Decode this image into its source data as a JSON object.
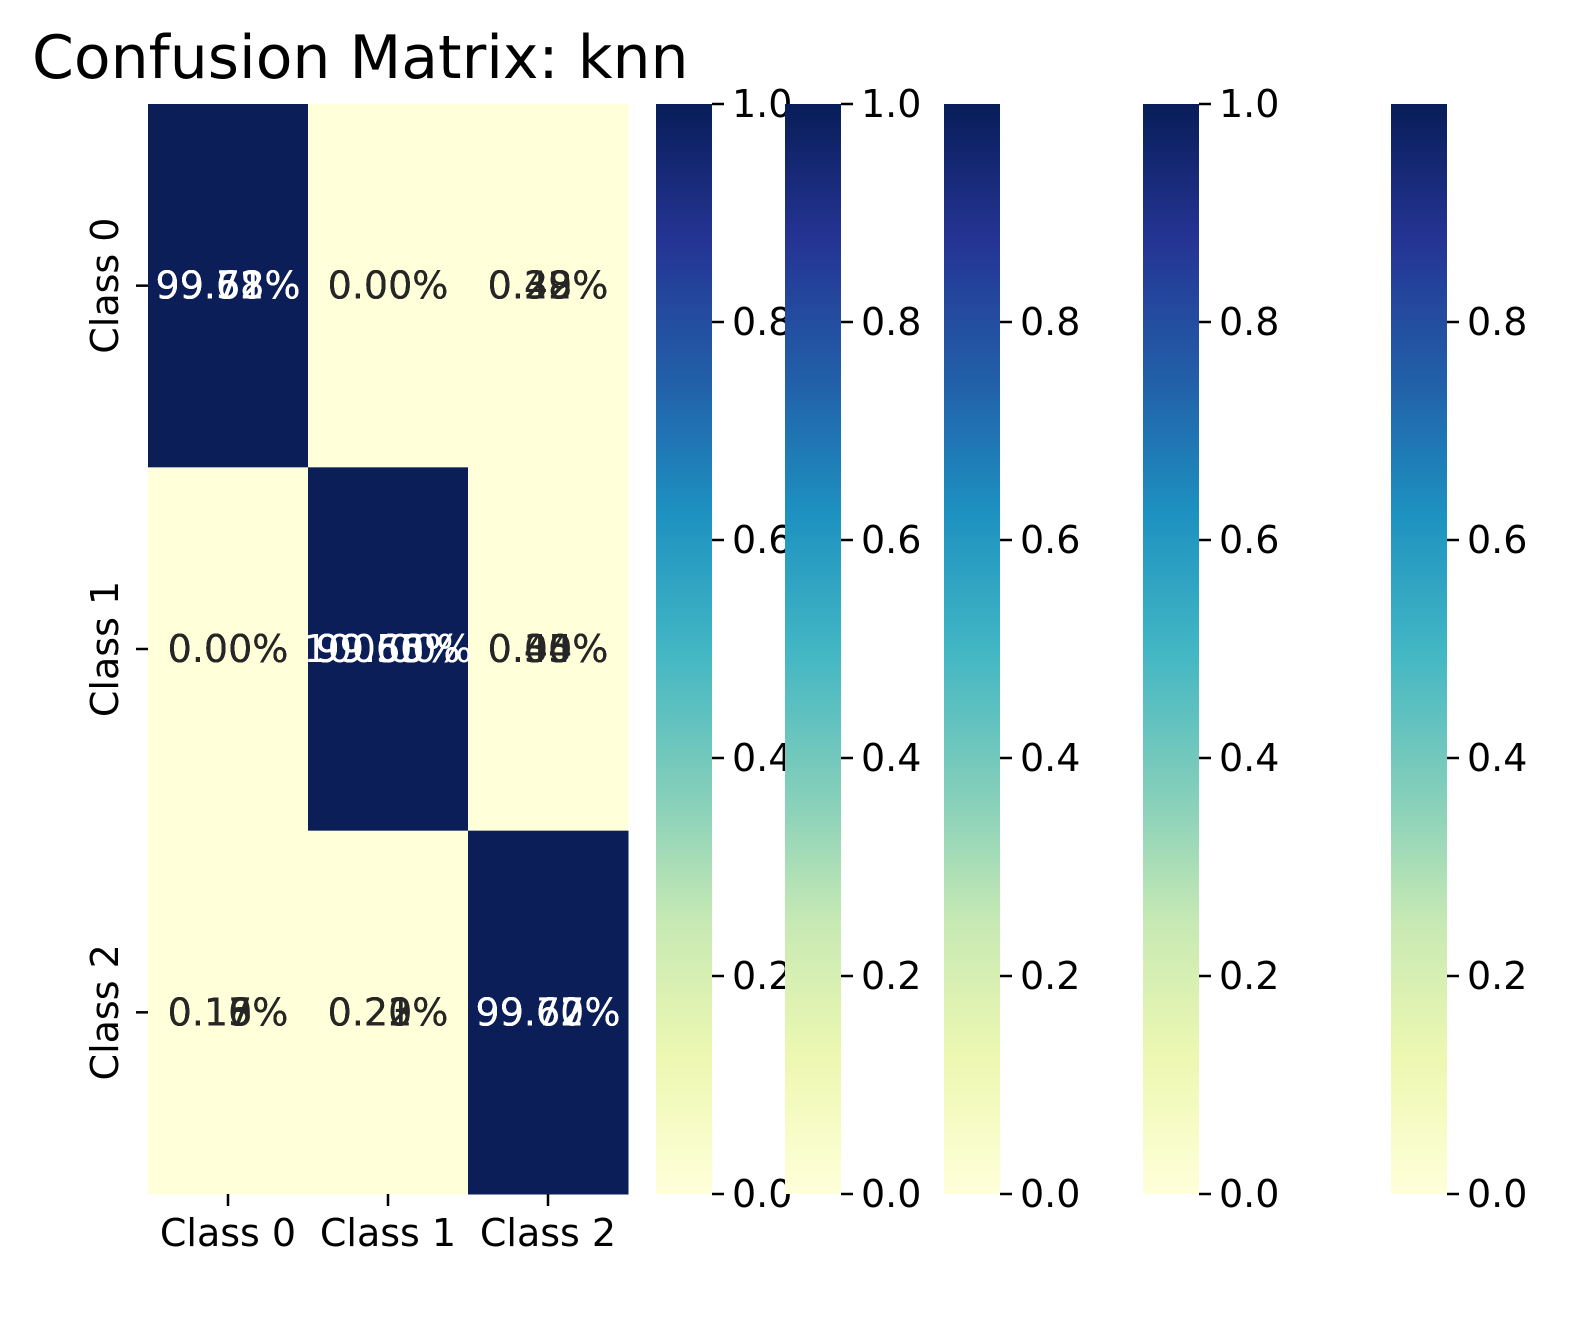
{
  "chart_data": {
    "type": "heatmap",
    "title": "Confusion Matrix: knn",
    "xlabel": "",
    "ylabel": "",
    "row_labels": [
      "Class 0",
      "Class 1",
      "Class 2"
    ],
    "col_labels": [
      "Class 0",
      "Class 1",
      "Class 2"
    ],
    "values": [
      [
        1.0,
        0.0,
        0.0
      ],
      [
        0.0,
        1.0,
        0.0
      ],
      [
        0.0,
        0.0,
        1.0
      ]
    ],
    "annotation_layers": [
      [
        [
          "99.71%",
          "0.00%",
          "0.29%"
        ],
        [
          "0.00%",
          "99.66%",
          "0.34%"
        ],
        [
          "0.17%",
          "0.21%",
          "99.62%"
        ]
      ],
      [
        [
          "99.58%",
          "0.00%",
          "0.42%"
        ],
        [
          "0.00%",
          "99.60%",
          "0.40%"
        ],
        [
          "0.10%",
          "0.20%",
          "99.70%"
        ]
      ],
      [
        [
          "99.62%",
          "0.00%",
          "0.38%"
        ],
        [
          "0.00%",
          "99.55%",
          "0.45%"
        ],
        [
          "0.15%",
          "0.23%",
          "99.62%"
        ]
      ],
      [
        [
          "99.72%",
          "0.00%",
          "0.28%"
        ],
        [
          "0.00%",
          "100.00%",
          "0.00%"
        ],
        [
          "0.13%",
          "0.20%",
          "99.67%"
        ]
      ],
      [
        [
          "99.68%",
          "0.00%",
          "0.32%"
        ],
        [
          "0.00%",
          "99.65%",
          "0.35%"
        ],
        [
          "0.16%",
          "0.22%",
          "99.62%"
        ]
      ]
    ],
    "colorbars": [
      {
        "ticks": [
          "0.0",
          "0.2",
          "0.4",
          "0.6",
          "0.8",
          "1.0"
        ]
      },
      {
        "ticks": [
          "0.0",
          "0.2",
          "0.4",
          "0.6",
          "0.8",
          "1.0"
        ]
      },
      {
        "ticks": [
          "0.0",
          "0.2",
          "0.4",
          "0.6",
          "0.8"
        ]
      },
      {
        "ticks": [
          "0.0",
          "0.2",
          "0.4",
          "0.6",
          "0.8",
          "1.0"
        ]
      },
      {
        "ticks": [
          "0.0",
          "0.2",
          "0.4",
          "0.6",
          "0.8"
        ]
      }
    ],
    "colormap": "YlGnBu",
    "colormap_stops": [
      "#ffffd9",
      "#edf8b1",
      "#c7e9b4",
      "#7fcdbb",
      "#41b6c4",
      "#1d91c0",
      "#225ea8",
      "#253494",
      "#081d58"
    ],
    "colors": {
      "low": "#ffffd9",
      "high": "#0b1e58",
      "text_dark": "#262626",
      "text_light": "#ffffff"
    }
  }
}
